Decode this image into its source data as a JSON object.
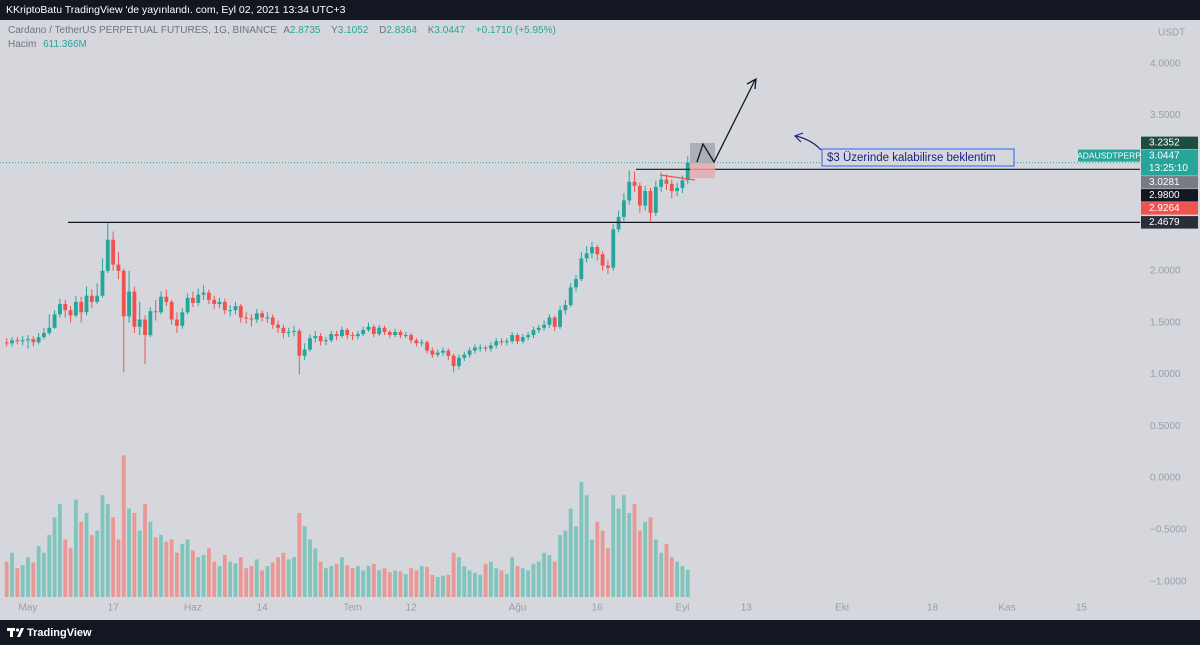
{
  "header": {
    "publisher_line": "KKriptoBatu TradingView 'de yayınlandı. com, Eyl 02, 2021 13:34 UTC+3"
  },
  "footer": {
    "brand": "TradingView"
  },
  "chart_data": {
    "type": "candlestick",
    "title": "Cardano / TetherUS PERPETUAL FUTURES, 1G, BINANCE",
    "ohlc_letters": [
      "A",
      "Y",
      "D",
      "K"
    ],
    "change_text": "+0.1710 (+5.95%)",
    "currency": "USDT",
    "symbol": "ADAUSDTPERP",
    "countdown": "13:25:10",
    "annotation": "$3 Üzerinde kalabilirse beklentim",
    "up_color": "#26a69a",
    "down_color": "#ef5350",
    "open": [
      1.31,
      1.3,
      1.33,
      1.32,
      1.33,
      1.34,
      1.31,
      1.36,
      1.4,
      1.45,
      1.58,
      1.68,
      1.62,
      1.57,
      1.7,
      1.6,
      1.76,
      1.7,
      1.76,
      2.0,
      2.3,
      2.06,
      2.0,
      1.56,
      1.8,
      1.46,
      1.53,
      1.38,
      1.61,
      1.6,
      1.75,
      1.7,
      1.53,
      1.47,
      1.6,
      1.74,
      1.69,
      1.77,
      1.79,
      1.72,
      1.68,
      1.7,
      1.62,
      1.62,
      1.66,
      1.55,
      1.54,
      1.53,
      1.59,
      1.55,
      1.55,
      1.48,
      1.45,
      1.4,
      1.41,
      1.42,
      1.18,
      1.24,
      1.35,
      1.37,
      1.32,
      1.33,
      1.39,
      1.37,
      1.43,
      1.38,
      1.37,
      1.39,
      1.43,
      1.46,
      1.39,
      1.45,
      1.41,
      1.38,
      1.41,
      1.38,
      1.38,
      1.33,
      1.3,
      1.31,
      1.23,
      1.19,
      1.21,
      1.23,
      1.18,
      1.08,
      1.16,
      1.19,
      1.23,
      1.26,
      1.26,
      1.25,
      1.28,
      1.32,
      1.31,
      1.32,
      1.38,
      1.32,
      1.36,
      1.38,
      1.43,
      1.45,
      1.48,
      1.55,
      1.46,
      1.62,
      1.67,
      1.84,
      1.92,
      2.12,
      2.17,
      2.23,
      2.16,
      2.05,
      2.03,
      2.4,
      2.52,
      2.68,
      2.86,
      2.82,
      2.63,
      2.77,
      2.56,
      2.81,
      2.88,
      2.84,
      2.77,
      2.8,
      2.8735
    ],
    "high": [
      1.35,
      1.36,
      1.36,
      1.37,
      1.38,
      1.37,
      1.4,
      1.45,
      1.58,
      1.62,
      1.73,
      1.72,
      1.66,
      1.76,
      1.75,
      1.85,
      1.82,
      1.88,
      2.12,
      2.47,
      2.38,
      2.18,
      2.02,
      2.0,
      1.85,
      1.7,
      1.57,
      1.65,
      1.72,
      1.8,
      1.82,
      1.72,
      1.6,
      1.64,
      1.78,
      1.8,
      1.83,
      1.86,
      1.82,
      1.76,
      1.74,
      1.73,
      1.67,
      1.7,
      1.68,
      1.6,
      1.58,
      1.63,
      1.62,
      1.6,
      1.58,
      1.52,
      1.48,
      1.45,
      1.47,
      1.44,
      1.3,
      1.39,
      1.42,
      1.4,
      1.36,
      1.42,
      1.42,
      1.46,
      1.45,
      1.41,
      1.42,
      1.46,
      1.5,
      1.48,
      1.48,
      1.47,
      1.43,
      1.44,
      1.43,
      1.41,
      1.4,
      1.35,
      1.34,
      1.33,
      1.26,
      1.24,
      1.26,
      1.25,
      1.2,
      1.19,
      1.22,
      1.26,
      1.29,
      1.29,
      1.28,
      1.31,
      1.35,
      1.35,
      1.35,
      1.41,
      1.4,
      1.39,
      1.41,
      1.46,
      1.48,
      1.52,
      1.58,
      1.57,
      1.66,
      1.72,
      1.88,
      1.96,
      2.18,
      2.24,
      2.28,
      2.25,
      2.19,
      2.1,
      2.45,
      2.58,
      2.75,
      2.97,
      2.96,
      2.85,
      2.82,
      2.8,
      2.87,
      2.95,
      2.93,
      2.88,
      2.85,
      2.92,
      3.1052
    ],
    "low": [
      1.27,
      1.27,
      1.29,
      1.28,
      1.25,
      1.27,
      1.29,
      1.34,
      1.38,
      1.44,
      1.55,
      1.55,
      1.5,
      1.55,
      1.5,
      1.57,
      1.64,
      1.68,
      1.74,
      1.98,
      2.0,
      1.92,
      1.02,
      1.5,
      1.4,
      1.38,
      1.1,
      1.36,
      1.52,
      1.58,
      1.66,
      1.48,
      1.4,
      1.44,
      1.58,
      1.65,
      1.66,
      1.72,
      1.68,
      1.63,
      1.64,
      1.58,
      1.56,
      1.58,
      1.5,
      1.49,
      1.46,
      1.5,
      1.51,
      1.5,
      1.44,
      1.4,
      1.35,
      1.36,
      1.37,
      1.0,
      1.14,
      1.22,
      1.31,
      1.28,
      1.28,
      1.31,
      1.33,
      1.35,
      1.34,
      1.33,
      1.34,
      1.37,
      1.41,
      1.36,
      1.37,
      1.38,
      1.35,
      1.36,
      1.35,
      1.35,
      1.3,
      1.27,
      1.27,
      1.2,
      1.16,
      1.17,
      1.18,
      1.14,
      1.02,
      1.05,
      1.13,
      1.16,
      1.2,
      1.22,
      1.22,
      1.22,
      1.25,
      1.28,
      1.28,
      1.3,
      1.29,
      1.3,
      1.33,
      1.35,
      1.4,
      1.42,
      1.45,
      1.42,
      1.44,
      1.58,
      1.65,
      1.8,
      1.9,
      2.08,
      2.12,
      2.1,
      2.0,
      1.97,
      2.0,
      2.37,
      2.48,
      2.64,
      2.76,
      2.56,
      2.58,
      2.48,
      2.53,
      2.76,
      2.78,
      2.7,
      2.72,
      2.75,
      2.8364
    ],
    "close": [
      1.3,
      1.33,
      1.32,
      1.33,
      1.34,
      1.31,
      1.36,
      1.4,
      1.45,
      1.58,
      1.68,
      1.62,
      1.57,
      1.7,
      1.6,
      1.76,
      1.7,
      1.76,
      2.0,
      2.3,
      2.06,
      2.0,
      1.56,
      1.8,
      1.46,
      1.53,
      1.38,
      1.61,
      1.6,
      1.75,
      1.7,
      1.53,
      1.47,
      1.6,
      1.74,
      1.69,
      1.77,
      1.79,
      1.72,
      1.68,
      1.7,
      1.62,
      1.62,
      1.66,
      1.55,
      1.54,
      1.53,
      1.59,
      1.55,
      1.55,
      1.48,
      1.45,
      1.4,
      1.41,
      1.42,
      1.18,
      1.24,
      1.35,
      1.37,
      1.32,
      1.33,
      1.39,
      1.37,
      1.43,
      1.38,
      1.37,
      1.39,
      1.43,
      1.46,
      1.39,
      1.45,
      1.41,
      1.38,
      1.41,
      1.38,
      1.38,
      1.33,
      1.3,
      1.31,
      1.23,
      1.19,
      1.21,
      1.23,
      1.18,
      1.08,
      1.16,
      1.19,
      1.23,
      1.26,
      1.26,
      1.25,
      1.28,
      1.32,
      1.31,
      1.32,
      1.38,
      1.32,
      1.36,
      1.38,
      1.43,
      1.45,
      1.48,
      1.55,
      1.46,
      1.62,
      1.67,
      1.84,
      1.92,
      2.12,
      2.17,
      2.23,
      2.16,
      2.05,
      2.03,
      2.4,
      2.52,
      2.68,
      2.86,
      2.82,
      2.63,
      2.77,
      2.56,
      2.81,
      2.88,
      2.84,
      2.77,
      2.8,
      2.8735,
      3.0447
    ],
    "volume": {
      "name": "Hacim",
      "up_color": "#80c4bc",
      "down_color": "#e89896",
      "ylim": [
        0,
        4000
      ],
      "values": [
        800,
        1000,
        650,
        720,
        900,
        780,
        1150,
        1000,
        1400,
        1800,
        2100,
        1300,
        1100,
        2200,
        1700,
        1900,
        1400,
        1500,
        2300,
        2100,
        1800,
        1300,
        3200,
        2000,
        1900,
        1500,
        2100,
        1700,
        1350,
        1400,
        1250,
        1300,
        1000,
        1200,
        1300,
        1050,
        900,
        950,
        1100,
        800,
        700,
        950,
        800,
        760,
        900,
        650,
        700,
        850,
        600,
        700,
        780,
        900,
        1000,
        850,
        900,
        1900,
        1600,
        1300,
        1100,
        800,
        650,
        700,
        750,
        900,
        720,
        650,
        700,
        600,
        700,
        750,
        600,
        650,
        560,
        600,
        580,
        520,
        650,
        600,
        700,
        680,
        500,
        450,
        480,
        500,
        1000,
        900,
        700,
        600,
        550,
        500,
        750,
        800,
        650,
        600,
        520,
        900,
        700,
        650,
        600,
        750,
        800,
        1000,
        950,
        800,
        1400,
        1500,
        2000,
        1600,
        2600,
        2300,
        1300,
        1700,
        1500,
        1100,
        2300,
        2000,
        2300,
        1900,
        2100,
        1500,
        1700,
        1800,
        1300,
        1000,
        1200,
        900,
        800,
        700,
        611.366
      ],
      "value_labels": [
        null,
        null,
        null,
        null,
        null,
        null,
        null,
        null,
        null,
        null,
        null,
        null,
        null,
        null,
        null,
        null,
        null,
        null,
        null,
        null,
        null,
        null,
        null,
        null,
        null,
        null,
        null,
        null,
        null,
        null,
        null,
        null,
        null,
        null,
        null,
        null,
        null,
        null,
        null,
        null,
        null,
        null,
        null,
        null,
        null,
        null,
        null,
        null,
        null,
        null,
        null,
        null,
        null,
        null,
        null,
        null,
        null,
        null,
        null,
        null,
        null,
        null,
        null,
        null,
        null,
        null,
        null,
        null,
        null,
        null,
        null,
        null,
        null,
        null,
        null,
        null,
        null,
        null,
        null,
        null,
        null,
        null,
        null,
        null,
        null,
        null,
        null,
        null,
        null,
        null,
        null,
        null,
        null,
        null,
        null,
        null,
        null,
        null,
        null,
        null,
        null,
        null,
        null,
        null,
        null,
        null,
        null,
        null,
        null,
        null,
        null,
        null,
        null,
        null,
        null,
        null,
        null,
        null,
        null,
        null,
        null,
        null,
        null,
        null,
        null,
        null,
        null,
        null,
        "611.366M"
      ]
    },
    "xlim": [
      -1.26,
      213
    ],
    "xticks": [
      {
        "value": 4,
        "label": "May"
      },
      {
        "value": 20,
        "label": "17"
      },
      {
        "value": 35,
        "label": "Haz"
      },
      {
        "value": 48,
        "label": "14"
      },
      {
        "value": 65,
        "label": "Tem"
      },
      {
        "value": 76,
        "label": "12"
      },
      {
        "value": 96,
        "label": "Ağu"
      },
      {
        "value": 111,
        "label": "16"
      },
      {
        "value": 127,
        "label": "Eyl"
      },
      {
        "value": 139,
        "label": "13"
      },
      {
        "value": 157,
        "label": "Eki"
      },
      {
        "value": 174,
        "label": "18"
      },
      {
        "value": 188,
        "label": "Kas"
      },
      {
        "value": 202,
        "label": "15"
      }
    ],
    "ylim": [
      -1.158,
      4.421
    ],
    "yticks": [
      {
        "value": 4,
        "label": "4.0000"
      },
      {
        "value": 3.5,
        "label": "3.5000"
      },
      {
        "value": 2,
        "label": "2.0000"
      },
      {
        "value": 1.5,
        "label": "1.5000"
      },
      {
        "value": 1,
        "label": "1.0000"
      },
      {
        "value": 0.5,
        "label": "0.5000"
      },
      {
        "value": 0,
        "label": "0.0000"
      },
      {
        "value": -0.5,
        "label": "−0.5000"
      },
      {
        "value": -1,
        "label": "−1.0000"
      }
    ],
    "last_price_color": "#26a69a",
    "price_labels": [
      {
        "value": 3.2352,
        "label": "3.2352",
        "color": "#1d4d40",
        "line": false
      },
      {
        "value": 3.0281,
        "label": "3.0281",
        "color": "#787b86",
        "line": false
      },
      {
        "value": 2.98,
        "label": "2.9800",
        "color": "#131722",
        "line": true
      },
      {
        "value": 2.9264,
        "label": "2.9264",
        "color": "#ef5350",
        "line": false
      },
      {
        "value": 2.4679,
        "label": "2.4679",
        "color": "#2a2e39",
        "line": true
      }
    ]
  }
}
